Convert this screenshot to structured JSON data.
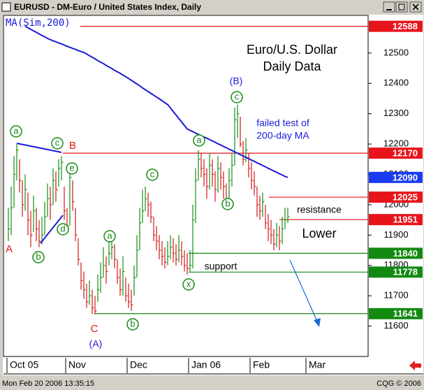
{
  "chart_data": {
    "type": "ohlc",
    "title": "EURUSD - DM-Euro / United States Index, Daily",
    "status_left": "Mon Feb 20 2006 13:35:15",
    "status_right": "CQG © 2006",
    "categories": [
      "Oct 05",
      null,
      null,
      null,
      null,
      null,
      null,
      null,
      null,
      null,
      null,
      null,
      null,
      null,
      null,
      null,
      null,
      null,
      null,
      null,
      null,
      "Nov",
      null,
      null,
      null,
      null,
      null,
      null,
      null,
      null,
      null,
      null,
      null,
      null,
      null,
      null,
      null,
      null,
      null,
      null,
      null,
      null,
      null,
      "Dec",
      null,
      null,
      null,
      null,
      null,
      null,
      null,
      null,
      null,
      null,
      null,
      null,
      null,
      null,
      null,
      null,
      null,
      null,
      null,
      null,
      null,
      "Jan 06",
      null,
      null,
      null,
      null,
      null,
      null,
      null,
      null,
      null,
      null,
      null,
      null,
      null,
      null,
      null,
      null,
      null,
      null,
      null,
      null,
      null,
      "Feb",
      null,
      null,
      null,
      null,
      null,
      null,
      null,
      null,
      null,
      null,
      null,
      null,
      null,
      null,
      null,
      null,
      null,
      null,
      null,
      "Mar",
      null,
      null,
      null,
      null,
      null,
      null,
      null,
      null,
      null,
      null,
      null,
      null,
      null,
      null,
      null,
      null,
      null,
      null,
      null,
      null
    ],
    "high": [
      11990,
      12060,
      12160,
      12200,
      12150,
      12080,
      12100,
      12040,
      11980,
      12030,
      11990,
      11950,
      11960,
      12010,
      12070,
      12060,
      12120,
      12110,
      12150,
      12160,
      12060,
      11990,
      12110,
      12080,
      11990,
      11890,
      11810,
      11780,
      11740,
      11750,
      11720,
      11700,
      11770,
      11810,
      11860,
      11830,
      11880,
      11900,
      11870,
      11820,
      11790,
      11830,
      11760,
      11740,
      11720,
      11800,
      11900,
      11990,
      12050,
      12060,
      12040,
      12010,
      11960,
      11930,
      11900,
      11880,
      11860,
      11880,
      11900,
      11890,
      11870,
      11900,
      11880,
      11850,
      11840,
      11850,
      12000,
      12120,
      12180,
      12170,
      12150,
      12120,
      12170,
      12150,
      12110,
      12160,
      12140,
      12110,
      12070,
      12120,
      12170,
      12320,
      12330,
      12290,
      12210,
      12220,
      12170,
      12140,
      12110,
      12060,
      12030,
      12040,
      12000,
      11970,
      11950,
      11920,
      11940,
      11930,
      11960,
      11990,
      11990,
      null,
      null,
      null,
      null,
      null,
      null,
      null,
      null,
      null,
      null,
      null,
      null,
      null,
      null,
      null,
      null,
      null,
      null,
      null,
      null,
      null,
      null,
      null,
      null,
      null,
      null,
      null
    ],
    "low": [
      11880,
      11900,
      11990,
      12080,
      12040,
      11960,
      11980,
      11900,
      11860,
      11910,
      11880,
      11860,
      11870,
      11900,
      11960,
      11950,
      12000,
      12010,
      12060,
      12080,
      11950,
      11910,
      11930,
      11980,
      11880,
      11800,
      11720,
      11690,
      11660,
      11670,
      11640,
      11640,
      11680,
      11710,
      11760,
      11740,
      11800,
      11820,
      11790,
      11740,
      11700,
      11700,
      11680,
      11660,
      11650,
      11700,
      11760,
      11850,
      11940,
      11980,
      11960,
      11940,
      11880,
      11850,
      11820,
      11800,
      11790,
      11800,
      11820,
      11810,
      11800,
      11810,
      11800,
      11780,
      11770,
      11780,
      11790,
      11940,
      12080,
      12090,
      12060,
      12020,
      12050,
      12060,
      12010,
      12040,
      12050,
      12020,
      11990,
      12000,
      12060,
      12130,
      12220,
      12190,
      12130,
      12140,
      12090,
      12050,
      12030,
      11960,
      11950,
      11960,
      11920,
      11880,
      11870,
      11850,
      11860,
      11850,
      11870,
      11920,
      11940,
      null,
      null,
      null,
      null,
      null,
      null,
      null,
      null,
      null,
      null,
      null,
      null,
      null,
      null,
      null,
      null,
      null,
      null,
      null,
      null,
      null,
      null,
      null,
      null,
      null,
      null,
      null
    ],
    "close": [
      11920,
      11990,
      12100,
      12180,
      12080,
      12000,
      12050,
      11950,
      11900,
      11980,
      11920,
      11880,
      11900,
      11960,
      12020,
      12000,
      12080,
      12050,
      12120,
      12140,
      11980,
      11930,
      12090,
      12010,
      11900,
      11820,
      11750,
      11720,
      11680,
      11700,
      11660,
      11650,
      11720,
      11760,
      11800,
      11780,
      11840,
      11860,
      11820,
      11760,
      11720,
      11780,
      11700,
      11680,
      11670,
      11760,
      11850,
      11940,
      11980,
      12020,
      12000,
      11960,
      11900,
      11880,
      11850,
      11830,
      11810,
      11830,
      11860,
      11840,
      11820,
      11850,
      11830,
      11800,
      11790,
      11800,
      11950,
      12080,
      12150,
      12120,
      12100,
      12060,
      12130,
      12100,
      12050,
      12120,
      12090,
      12060,
      12020,
      12080,
      12130,
      12280,
      12300,
      12200,
      12150,
      12180,
      12120,
      12080,
      12060,
      12000,
      11980,
      12010,
      11940,
      11920,
      11900,
      11870,
      11900,
      11880,
      11920,
      11950,
      11960,
      null,
      null,
      null,
      null,
      null,
      null,
      null,
      null,
      null,
      null,
      null,
      null,
      null,
      null,
      null,
      null,
      null,
      null,
      null,
      null,
      null,
      null,
      null,
      null,
      null,
      null,
      null
    ],
    "up_color": "#109010",
    "down_color": "#d01818",
    "ma": {
      "name": "MA(Sim,200)",
      "color": "#1a1ad8",
      "values": [
        null,
        null,
        null,
        null,
        null,
        null,
        12588,
        12583,
        12578,
        12573,
        12568,
        12563,
        12558,
        12553,
        12548,
        12544,
        12540,
        12537,
        12533,
        12530,
        12526,
        12522,
        12519,
        12515,
        12512,
        12508,
        12505,
        12502,
        12497,
        12491,
        12486,
        12481,
        12475,
        12470,
        12465,
        12459,
        12454,
        12449,
        12443,
        12438,
        12433,
        12427,
        12422,
        12416,
        12410,
        12404,
        12398,
        12392,
        12385,
        12379,
        12373,
        12367,
        12361,
        12355,
        12349,
        12343,
        12336,
        12330,
        12319,
        12307,
        12296,
        12284,
        12273,
        12261,
        12250,
        12245,
        12241,
        12236,
        12232,
        12227,
        12223,
        12219,
        12215,
        12210,
        12206,
        12201,
        12197,
        12192,
        12188,
        12183,
        12179,
        12174,
        12170,
        12165,
        12161,
        12156,
        12152,
        12147,
        12143,
        12138,
        12134,
        12129,
        12125,
        12120,
        12116,
        12111,
        12107,
        12102,
        12098,
        12093,
        12090,
        null,
        null,
        null,
        null,
        null,
        null,
        null,
        null,
        null,
        null,
        null,
        null,
        null,
        null,
        null,
        null,
        null,
        null,
        null,
        null,
        null,
        null,
        null,
        null,
        null,
        null,
        null
      ]
    },
    "ylim": [
      11500,
      12624
    ],
    "yticks": [
      11600,
      11700,
      11800,
      11900,
      12000,
      12100,
      12200,
      12300,
      12400,
      12500
    ],
    "levels": [
      {
        "value": 12588,
        "color": "#e8141c"
      },
      {
        "value": 12170,
        "color": "#e8141c"
      },
      {
        "value": 12090,
        "color": "#1a3cf0"
      },
      {
        "value": 12025,
        "color": "#e8141c"
      },
      {
        "value": 11951,
        "color": "#e8141c"
      },
      {
        "value": 11840,
        "color": "#128a12"
      },
      {
        "value": 11778,
        "color": "#128a12"
      },
      {
        "value": 11641,
        "color": "#128a12"
      }
    ],
    "annotations": [
      "Euro/U.S. Dollar",
      "Daily Data",
      "(B)",
      "failed test of",
      "200-day MA",
      "B",
      "A",
      "C",
      "(A)",
      "resistance",
      "Lower",
      "support"
    ],
    "wave_labels": [
      "a",
      "c",
      "e",
      "d",
      "b",
      "a",
      "c",
      "b",
      "x",
      "a",
      "b",
      "c"
    ]
  }
}
